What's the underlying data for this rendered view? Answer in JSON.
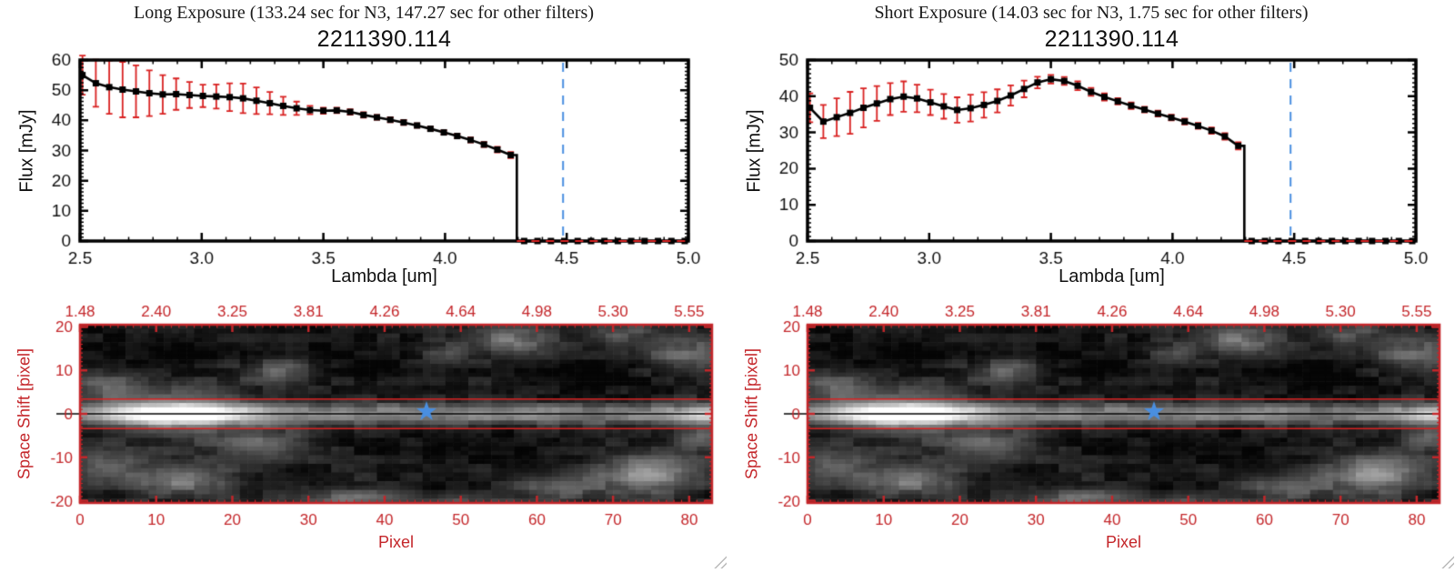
{
  "colors": {
    "page_bg": "#ffffff",
    "axis_red": "#c4262a",
    "error_red": "#d92121",
    "ref_blue": "#4a8fe0",
    "frame_black": "#000000",
    "title_color": "#1a1a1a"
  },
  "chart_data": [
    {
      "id": "long-flux-spectrum",
      "type": "line",
      "exposure_title": "Long Exposure (133.24 sec for N3, 147.27 sec for other filters)",
      "title": "2211390.114",
      "xlabel": "Lambda [um]",
      "ylabel": "Flux [mJy]",
      "xlim": [
        2.5,
        5.0
      ],
      "ylim": [
        0,
        60
      ],
      "xticks": [
        2.5,
        3.0,
        3.5,
        4.0,
        4.5,
        5.0
      ],
      "xtick_labels": [
        "2.5",
        "3.0",
        "3.5",
        "4.0",
        "4.5",
        "5.0"
      ],
      "yticks": [
        0,
        10,
        20,
        30,
        40,
        50,
        60
      ],
      "ytick_labels": [
        "0",
        "10",
        "20",
        "30",
        "40",
        "50",
        "60"
      ],
      "x_minor_step": 0.1,
      "y_minor_step": 1.25,
      "ref_line_x": 4.485,
      "drop_x": 4.295,
      "x": [
        2.51,
        2.565,
        2.62,
        2.675,
        2.73,
        2.785,
        2.84,
        2.895,
        2.95,
        3.005,
        3.06,
        3.115,
        3.17,
        3.225,
        3.28,
        3.335,
        3.39,
        3.445,
        3.5,
        3.555,
        3.61,
        3.665,
        3.72,
        3.775,
        3.83,
        3.885,
        3.94,
        3.995,
        4.05,
        4.105,
        4.16,
        4.215,
        4.27
      ],
      "y": [
        55.0,
        52.3,
        51.0,
        50.2,
        49.6,
        49.0,
        48.6,
        48.7,
        48.4,
        48.1,
        47.9,
        47.7,
        47.3,
        46.5,
        45.7,
        44.8,
        44.0,
        43.4,
        43.2,
        43.3,
        42.8,
        41.8,
        41.0,
        40.2,
        39.3,
        38.3,
        37.2,
        36.0,
        34.8,
        33.5,
        32.0,
        30.3,
        28.5
      ],
      "yerr": [
        6.5,
        7.8,
        8.8,
        9.2,
        8.6,
        7.6,
        6.4,
        5.2,
        4.3,
        3.7,
        4.0,
        4.6,
        4.9,
        4.4,
        3.7,
        3.0,
        2.2,
        1.4,
        1.0,
        0.9,
        0.9,
        0.9,
        0.8,
        0.8,
        0.8,
        0.7,
        0.7,
        0.7,
        0.7,
        0.8,
        0.8,
        0.9,
        1.0
      ],
      "zero_x": [
        4.325,
        4.38,
        4.435,
        4.49,
        4.545,
        4.6,
        4.655,
        4.71,
        4.765,
        4.82,
        4.875,
        4.93,
        4.985
      ]
    },
    {
      "id": "long-2d-spectral-image",
      "type": "heatmap",
      "xlabel": "Pixel",
      "ylabel": "Space Shift [pixel]",
      "xlim": [
        0,
        83
      ],
      "ylim": [
        -20.5,
        20.5
      ],
      "nx": 83,
      "ny": 41,
      "top_axis_labels": [
        "1.48",
        "2.40",
        "3.25",
        "3.81",
        "4.26",
        "4.64",
        "4.98",
        "5.30",
        "5.55"
      ],
      "xticks": [
        0,
        10,
        20,
        30,
        40,
        50,
        60,
        70,
        80
      ],
      "xtick_labels": [
        "0",
        "10",
        "20",
        "30",
        "40",
        "50",
        "60",
        "70",
        "80"
      ],
      "yticks": [
        20,
        10,
        0,
        -10,
        -20
      ],
      "ytick_labels": [
        "20",
        "10",
        "0",
        "-10",
        "-20"
      ],
      "aperture_y": [
        3.4,
        -3.4
      ],
      "center_line_y": 0,
      "star": {
        "x": 45.5,
        "y": 0.5
      },
      "bg_base": 0.1,
      "band": {
        "a0": 0.45,
        "a1": 0.55,
        "cx": 13,
        "sx": 7,
        "edge_a": 0.35,
        "edge_cx": 82,
        "edge_sx": 3,
        "sy": 1.7,
        "halo_a": 0.25,
        "halo_sx": 6,
        "halo_sy": 4.5
      },
      "blobs": [
        [
          3,
          6,
          4,
          2.5,
          0.25
        ],
        [
          26,
          10,
          3.5,
          2,
          0.3
        ],
        [
          47,
          14,
          3,
          1.8,
          0.2
        ],
        [
          56,
          17,
          4,
          2.2,
          0.35
        ],
        [
          70,
          19,
          3,
          2,
          0.22
        ],
        [
          79,
          14,
          4,
          3,
          0.3
        ],
        [
          3,
          -12,
          3,
          3,
          0.25
        ],
        [
          13,
          -15,
          4.5,
          2.5,
          0.4
        ],
        [
          24,
          -7,
          4,
          2.5,
          0.28
        ],
        [
          35,
          -20,
          5,
          2,
          0.33
        ],
        [
          50,
          -21,
          4,
          1.5,
          0.22
        ],
        [
          62,
          -17,
          4,
          2,
          0.26
        ],
        [
          74,
          -14,
          4.5,
          3,
          0.5
        ],
        [
          81,
          -6,
          2.5,
          2,
          0.28
        ],
        [
          12,
          15,
          7,
          2.5,
          -0.1
        ],
        [
          36,
          12,
          8,
          3,
          -0.1
        ],
        [
          52,
          -7,
          8,
          3,
          -0.07
        ],
        [
          68,
          8,
          6,
          3,
          -0.08
        ]
      ]
    },
    {
      "id": "short-flux-spectrum",
      "type": "line",
      "exposure_title": "Short Exposure (14.03 sec for N3, 1.75 sec for other filters)",
      "title": "2211390.114",
      "xlabel": "Lambda [um]",
      "ylabel": "Flux [mJy]",
      "xlim": [
        2.5,
        5.0
      ],
      "ylim": [
        0,
        50
      ],
      "xticks": [
        2.5,
        3.0,
        3.5,
        4.0,
        4.5,
        5.0
      ],
      "xtick_labels": [
        "2.5",
        "3.0",
        "3.5",
        "4.0",
        "4.5",
        "5.0"
      ],
      "yticks": [
        0,
        10,
        20,
        30,
        40,
        50
      ],
      "ytick_labels": [
        "0",
        "10",
        "20",
        "30",
        "40",
        "50"
      ],
      "x_minor_step": 0.1,
      "y_minor_step": 1.25,
      "ref_line_x": 4.485,
      "drop_x": 4.295,
      "x": [
        2.51,
        2.565,
        2.62,
        2.675,
        2.73,
        2.785,
        2.84,
        2.895,
        2.95,
        3.005,
        3.06,
        3.115,
        3.17,
        3.225,
        3.28,
        3.335,
        3.39,
        3.445,
        3.5,
        3.555,
        3.61,
        3.665,
        3.72,
        3.775,
        3.83,
        3.885,
        3.94,
        3.995,
        4.05,
        4.105,
        4.16,
        4.215,
        4.27
      ],
      "y": [
        36.8,
        33.0,
        34.2,
        35.4,
        36.8,
        38.0,
        39.2,
        39.9,
        39.4,
        38.3,
        37.2,
        36.2,
        36.7,
        37.6,
        38.7,
        40.2,
        42.0,
        43.8,
        44.7,
        44.2,
        42.9,
        41.2,
        39.8,
        38.6,
        37.4,
        36.3,
        35.2,
        34.1,
        33.0,
        31.8,
        30.5,
        28.9,
        26.3
      ],
      "yerr": [
        4.0,
        4.6,
        5.2,
        5.8,
        5.4,
        4.8,
        4.4,
        4.2,
        3.8,
        3.5,
        3.4,
        3.5,
        3.7,
        3.5,
        3.2,
        2.8,
        2.3,
        1.6,
        1.2,
        1.1,
        1.2,
        1.1,
        1.0,
        0.9,
        0.9,
        0.8,
        0.8,
        0.8,
        0.8,
        0.8,
        0.9,
        0.9,
        1.0
      ],
      "zero_x": [
        4.325,
        4.38,
        4.435,
        4.49,
        4.545,
        4.6,
        4.655,
        4.71,
        4.765,
        4.82,
        4.875,
        4.93,
        4.985
      ]
    },
    {
      "id": "short-2d-spectral-image",
      "type": "heatmap",
      "xlabel": "Pixel",
      "ylabel": "Space Shift [pixel]",
      "xlim": [
        0,
        83
      ],
      "ylim": [
        -20.5,
        20.5
      ],
      "nx": 83,
      "ny": 41,
      "top_axis_labels": [
        "1.48",
        "2.40",
        "3.25",
        "3.81",
        "4.26",
        "4.64",
        "4.98",
        "5.30",
        "5.55"
      ],
      "xticks": [
        0,
        10,
        20,
        30,
        40,
        50,
        60,
        70,
        80
      ],
      "xtick_labels": [
        "0",
        "10",
        "20",
        "30",
        "40",
        "50",
        "60",
        "70",
        "80"
      ],
      "yticks": [
        20,
        10,
        0,
        -10,
        -20
      ],
      "ytick_labels": [
        "20",
        "10",
        "0",
        "-10",
        "-20"
      ],
      "aperture_y": [
        3.4,
        -3.4
      ],
      "center_line_y": 0,
      "star": {
        "x": 45.5,
        "y": 0.5
      },
      "bg_base": 0.1,
      "band": {
        "a0": 0.45,
        "a1": 0.55,
        "cx": 13,
        "sx": 7,
        "edge_a": 0.35,
        "edge_cx": 82,
        "edge_sx": 3,
        "sy": 1.7,
        "halo_a": 0.25,
        "halo_sx": 6,
        "halo_sy": 4.5
      },
      "blobs": [
        [
          3,
          6,
          4,
          2.5,
          0.25
        ],
        [
          26,
          10,
          3.5,
          2,
          0.3
        ],
        [
          47,
          14,
          3,
          1.8,
          0.2
        ],
        [
          56,
          17,
          4,
          2.2,
          0.35
        ],
        [
          70,
          19,
          3,
          2,
          0.22
        ],
        [
          79,
          14,
          4,
          3,
          0.3
        ],
        [
          3,
          -12,
          3,
          3,
          0.25
        ],
        [
          13,
          -15,
          4.5,
          2.5,
          0.4
        ],
        [
          24,
          -7,
          4,
          2.5,
          0.28
        ],
        [
          35,
          -20,
          5,
          2,
          0.33
        ],
        [
          50,
          -21,
          4,
          1.5,
          0.22
        ],
        [
          62,
          -17,
          4,
          2,
          0.26
        ],
        [
          74,
          -14,
          4.5,
          3,
          0.5
        ],
        [
          81,
          -6,
          2.5,
          2,
          0.28
        ],
        [
          12,
          15,
          7,
          2.5,
          -0.1
        ],
        [
          36,
          12,
          8,
          3,
          -0.1
        ],
        [
          52,
          -7,
          8,
          3,
          -0.07
        ],
        [
          68,
          8,
          6,
          3,
          -0.08
        ]
      ]
    }
  ]
}
